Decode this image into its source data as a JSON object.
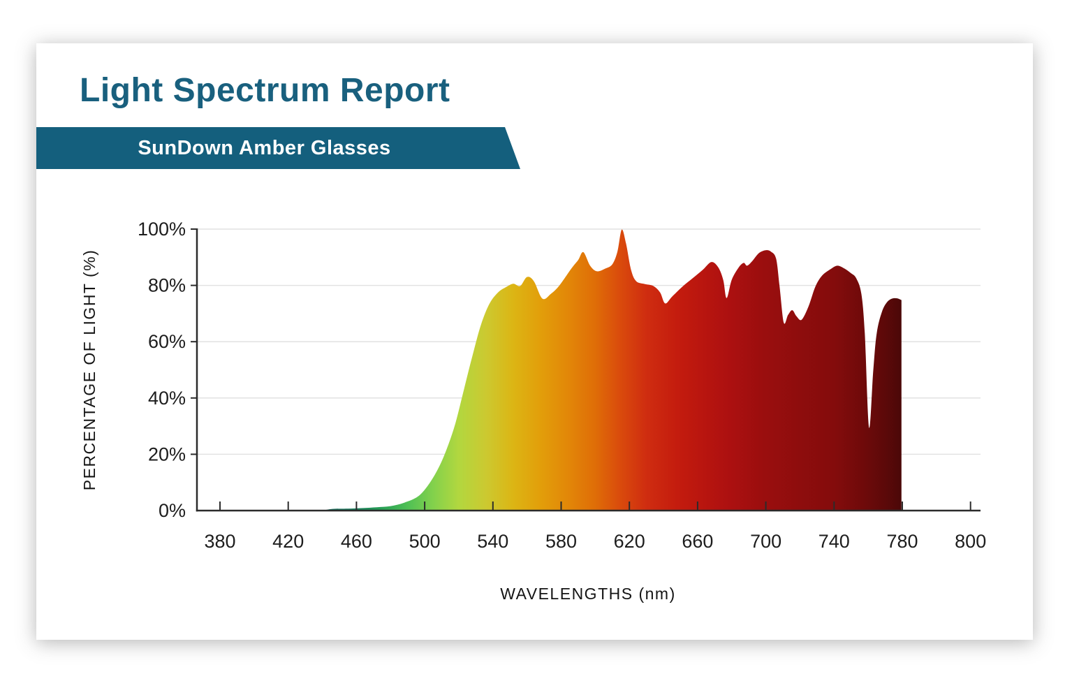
{
  "report": {
    "title": "Light Spectrum Report",
    "subtitle": "SunDown Amber Glasses"
  },
  "colors": {
    "accent_teal": "#145f7d",
    "title_text": "#19607e",
    "banner_text": "#ffffff",
    "axis_line": "#2b2b2b",
    "gridline": "#e2e2e2",
    "tick_label": "#1d1d1d"
  },
  "chart_data": {
    "type": "area",
    "title": "Light Spectrum Report",
    "subtitle": "SunDown Amber Glasses",
    "xlabel": "WAVELENGTHS (nm)",
    "ylabel": "PERCENTAGE OF LIGHT (%)",
    "x_tick_labels": [
      "380",
      "420",
      "460",
      "500",
      "540",
      "580",
      "620",
      "660",
      "700",
      "740",
      "780",
      "800"
    ],
    "y_tick_labels": [
      "0%",
      "20%",
      "40%",
      "60%",
      "80%",
      "100%"
    ],
    "xlim_nm": [
      380,
      800
    ],
    "ylim": [
      0,
      100
    ],
    "grid": "horizontal",
    "legend": "none",
    "series_name": "Percent of light transmitted through SunDown Amber glasses by wavelength",
    "points": [
      [
        440,
        0
      ],
      [
        446,
        0.6
      ],
      [
        455,
        0.7
      ],
      [
        464,
        0.9
      ],
      [
        472,
        1.2
      ],
      [
        480,
        1.6
      ],
      [
        488,
        2.8
      ],
      [
        496,
        5
      ],
      [
        502,
        9
      ],
      [
        508,
        15
      ],
      [
        513,
        22
      ],
      [
        518,
        31
      ],
      [
        523,
        43
      ],
      [
        528,
        55
      ],
      [
        533,
        66
      ],
      [
        538,
        73.5
      ],
      [
        543,
        77.5
      ],
      [
        548,
        79.5
      ],
      [
        552,
        80.6
      ],
      [
        556,
        79.8
      ],
      [
        560,
        83
      ],
      [
        564,
        81.5
      ],
      [
        569,
        75.3
      ],
      [
        574,
        77
      ],
      [
        579,
        80
      ],
      [
        586,
        86
      ],
      [
        590,
        89
      ],
      [
        593,
        91.8
      ],
      [
        597,
        87
      ],
      [
        601,
        85
      ],
      [
        606,
        86
      ],
      [
        610,
        87.5
      ],
      [
        613,
        92
      ],
      [
        615.5,
        99.8
      ],
      [
        618,
        95
      ],
      [
        621,
        85.5
      ],
      [
        624,
        81.5
      ],
      [
        629,
        80.5
      ],
      [
        634,
        79.8
      ],
      [
        638,
        77.5
      ],
      [
        641,
        73.6
      ],
      [
        645,
        76
      ],
      [
        651,
        79.5
      ],
      [
        657,
        82.5
      ],
      [
        663,
        85.5
      ],
      [
        668,
        88.3
      ],
      [
        672,
        86.5
      ],
      [
        675,
        82
      ],
      [
        677,
        75.5
      ],
      [
        680,
        82
      ],
      [
        684,
        86.3
      ],
      [
        687,
        88
      ],
      [
        689,
        87
      ],
      [
        692,
        88.6
      ],
      [
        696,
        91.5
      ],
      [
        700,
        92.5
      ],
      [
        703,
        92
      ],
      [
        706,
        89.5
      ],
      [
        708,
        80
      ],
      [
        710.5,
        66.8
      ],
      [
        713,
        69.5
      ],
      [
        715.5,
        71.2
      ],
      [
        718,
        69
      ],
      [
        721,
        67.8
      ],
      [
        725,
        72.5
      ],
      [
        729,
        79.5
      ],
      [
        733,
        83.5
      ],
      [
        738,
        85.8
      ],
      [
        742,
        87
      ],
      [
        746,
        86
      ],
      [
        750,
        84.3
      ],
      [
        753,
        82.5
      ],
      [
        756,
        77
      ],
      [
        758,
        63
      ],
      [
        760.5,
        29.5
      ],
      [
        763,
        50
      ],
      [
        765,
        63
      ],
      [
        768,
        70.5
      ],
      [
        771,
        74
      ],
      [
        774,
        75.3
      ],
      [
        777,
        75.4
      ],
      [
        779.5,
        74.8
      ]
    ],
    "gradient_stops": [
      [
        440,
        "#16695c"
      ],
      [
        460,
        "#1b7f5c"
      ],
      [
        475,
        "#28a055"
      ],
      [
        490,
        "#4fc055"
      ],
      [
        505,
        "#83d14c"
      ],
      [
        520,
        "#b2d73f"
      ],
      [
        536,
        "#ccc930"
      ],
      [
        552,
        "#dcb514"
      ],
      [
        568,
        "#e29e0a"
      ],
      [
        584,
        "#e28708"
      ],
      [
        600,
        "#df6d07"
      ],
      [
        614,
        "#da4c0c"
      ],
      [
        630,
        "#cf2d10"
      ],
      [
        648,
        "#c41c0e"
      ],
      [
        664,
        "#b8150f"
      ],
      [
        680,
        "#ab1010"
      ],
      [
        698,
        "#9b0e0e"
      ],
      [
        720,
        "#8e0d0d"
      ],
      [
        740,
        "#840c0c"
      ],
      [
        758,
        "#6e0a0a"
      ],
      [
        770,
        "#5c0909"
      ],
      [
        780,
        "#4a0808"
      ]
    ]
  }
}
